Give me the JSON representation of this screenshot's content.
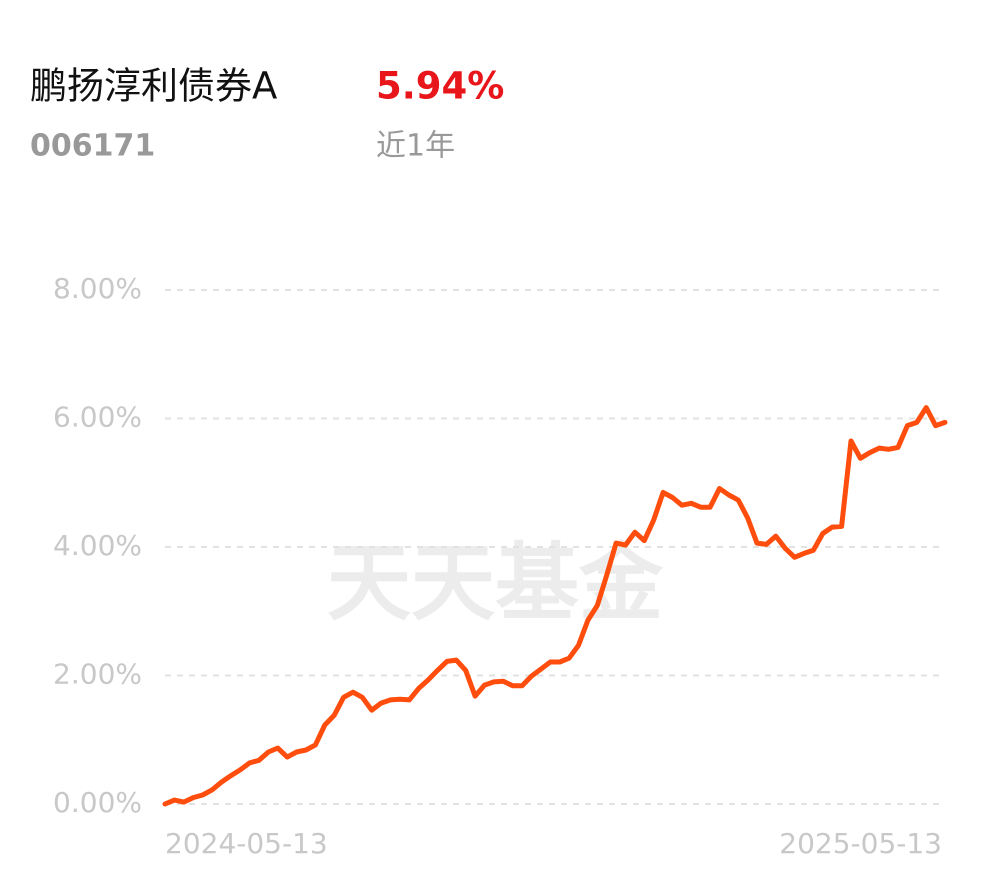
{
  "header": {
    "name": "鹏扬淳利债券A",
    "return": "5.94%",
    "code": "006171",
    "period": "近1年"
  },
  "chart_data": {
    "type": "line",
    "watermark": "天天基金",
    "categories": [
      "2024-05-13",
      null,
      null,
      null,
      null,
      null,
      null,
      null,
      null,
      null,
      null,
      null,
      null,
      null,
      null,
      null,
      null,
      null,
      null,
      null,
      null,
      null,
      null,
      null,
      null,
      null,
      null,
      null,
      null,
      null,
      null,
      null,
      null,
      null,
      null,
      null,
      null,
      null,
      null,
      null,
      null,
      null,
      null,
      null,
      null,
      null,
      null,
      null,
      null,
      null,
      null,
      null,
      null,
      null,
      null,
      null,
      null,
      null,
      null,
      null,
      null,
      null,
      null,
      null,
      null,
      null,
      null,
      null,
      null,
      null,
      null,
      null,
      null,
      null,
      null,
      null,
      null,
      null,
      null,
      null,
      null,
      null,
      null,
      "2025-05-13"
    ],
    "series": [
      {
        "color": "#ff4d0d",
        "values": [
          0.0,
          0.06,
          0.03,
          0.1,
          0.14,
          0.22,
          0.34,
          0.44,
          0.53,
          0.64,
          0.68,
          0.81,
          0.87,
          0.73,
          0.81,
          0.84,
          0.92,
          1.23,
          1.38,
          1.66,
          1.74,
          1.66,
          1.46,
          1.57,
          1.62,
          1.63,
          1.62,
          1.8,
          1.93,
          2.08,
          2.22,
          2.24,
          2.08,
          1.68,
          1.85,
          1.9,
          1.91,
          1.84,
          1.84,
          1.99,
          2.1,
          2.21,
          2.21,
          2.27,
          2.47,
          2.86,
          3.09,
          3.56,
          4.06,
          4.03,
          4.23,
          4.1,
          4.42,
          4.85,
          4.77,
          4.65,
          4.68,
          4.62,
          4.62,
          4.91,
          4.81,
          4.73,
          4.45,
          4.06,
          4.04,
          4.17,
          3.98,
          3.84,
          3.9,
          3.95,
          4.21,
          4.31,
          4.32,
          5.65,
          5.38,
          5.47,
          5.54,
          5.52,
          5.55,
          5.89,
          5.94,
          6.17,
          5.89,
          5.94
        ]
      }
    ],
    "ylim": [
      0,
      8
    ],
    "yticks": [
      {
        "value": 0,
        "label": "0.00%"
      },
      {
        "value": 2,
        "label": "2.00%"
      },
      {
        "value": 4,
        "label": "4.00%"
      },
      {
        "value": 6,
        "label": "6.00%"
      },
      {
        "value": 8,
        "label": "8.00%"
      }
    ],
    "grid": true
  }
}
